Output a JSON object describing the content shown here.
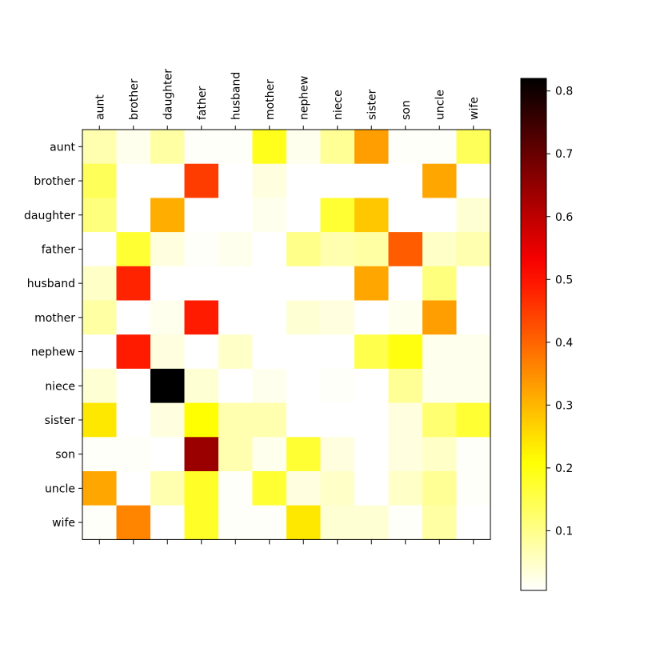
{
  "chart_data": {
    "type": "heatmap",
    "title": "",
    "xlabel": "",
    "ylabel": "",
    "x_labels": [
      "aunt",
      "brother",
      "daughter",
      "father",
      "husband",
      "mother",
      "nephew",
      "niece",
      "sister",
      "son",
      "uncle",
      "wife"
    ],
    "y_labels": [
      "aunt",
      "brother",
      "daughter",
      "father",
      "husband",
      "mother",
      "nephew",
      "niece",
      "sister",
      "son",
      "uncle",
      "wife"
    ],
    "x_axis_position": "top",
    "colormap": "hot_r",
    "color_range": [
      0.005,
      0.82
    ],
    "colorbar": {
      "position": "right",
      "ticks": [
        0.1,
        0.2,
        0.3,
        0.4,
        0.5,
        0.6,
        0.7,
        0.8
      ],
      "tick_labels": [
        "0.1",
        "0.2",
        "0.3",
        "0.4",
        "0.5",
        "0.6",
        "0.7",
        "0.8"
      ]
    },
    "values": [
      [
        0.07,
        0.02,
        0.08,
        0.01,
        0.01,
        0.19,
        0.02,
        0.09,
        0.33,
        0.01,
        0.01,
        0.14
      ],
      [
        0.14,
        0.0,
        0.0,
        0.45,
        0.0,
        0.03,
        0.0,
        0.0,
        0.0,
        0.0,
        0.32,
        0.0
      ],
      [
        0.11,
        0.0,
        0.31,
        0.0,
        0.0,
        0.02,
        0.0,
        0.17,
        0.28,
        0.0,
        0.0,
        0.04
      ],
      [
        0.0,
        0.17,
        0.03,
        0.01,
        0.02,
        0.0,
        0.1,
        0.07,
        0.08,
        0.41,
        0.05,
        0.07
      ],
      [
        0.05,
        0.48,
        0.0,
        0.0,
        0.0,
        0.0,
        0.0,
        0.0,
        0.32,
        0.0,
        0.11,
        0.0
      ],
      [
        0.08,
        0.0,
        0.02,
        0.49,
        0.0,
        0.0,
        0.04,
        0.03,
        0.0,
        0.02,
        0.33,
        0.0
      ],
      [
        0.0,
        0.49,
        0.03,
        0.0,
        0.05,
        0.0,
        0.0,
        0.0,
        0.15,
        0.2,
        0.02,
        0.02
      ],
      [
        0.04,
        0.0,
        0.82,
        0.04,
        0.0,
        0.02,
        0.0,
        0.01,
        0.0,
        0.09,
        0.02,
        0.02
      ],
      [
        0.24,
        0.0,
        0.03,
        0.21,
        0.07,
        0.07,
        0.0,
        0.0,
        0.0,
        0.03,
        0.12,
        0.17
      ],
      [
        0.01,
        0.01,
        0.0,
        0.64,
        0.07,
        0.02,
        0.17,
        0.03,
        0.0,
        0.03,
        0.05,
        0.01
      ],
      [
        0.32,
        0.0,
        0.07,
        0.18,
        0.01,
        0.17,
        0.03,
        0.05,
        0.0,
        0.05,
        0.09,
        0.01
      ],
      [
        0.01,
        0.36,
        0.0,
        0.18,
        0.01,
        0.01,
        0.24,
        0.04,
        0.04,
        0.01,
        0.08,
        0.0
      ]
    ]
  }
}
